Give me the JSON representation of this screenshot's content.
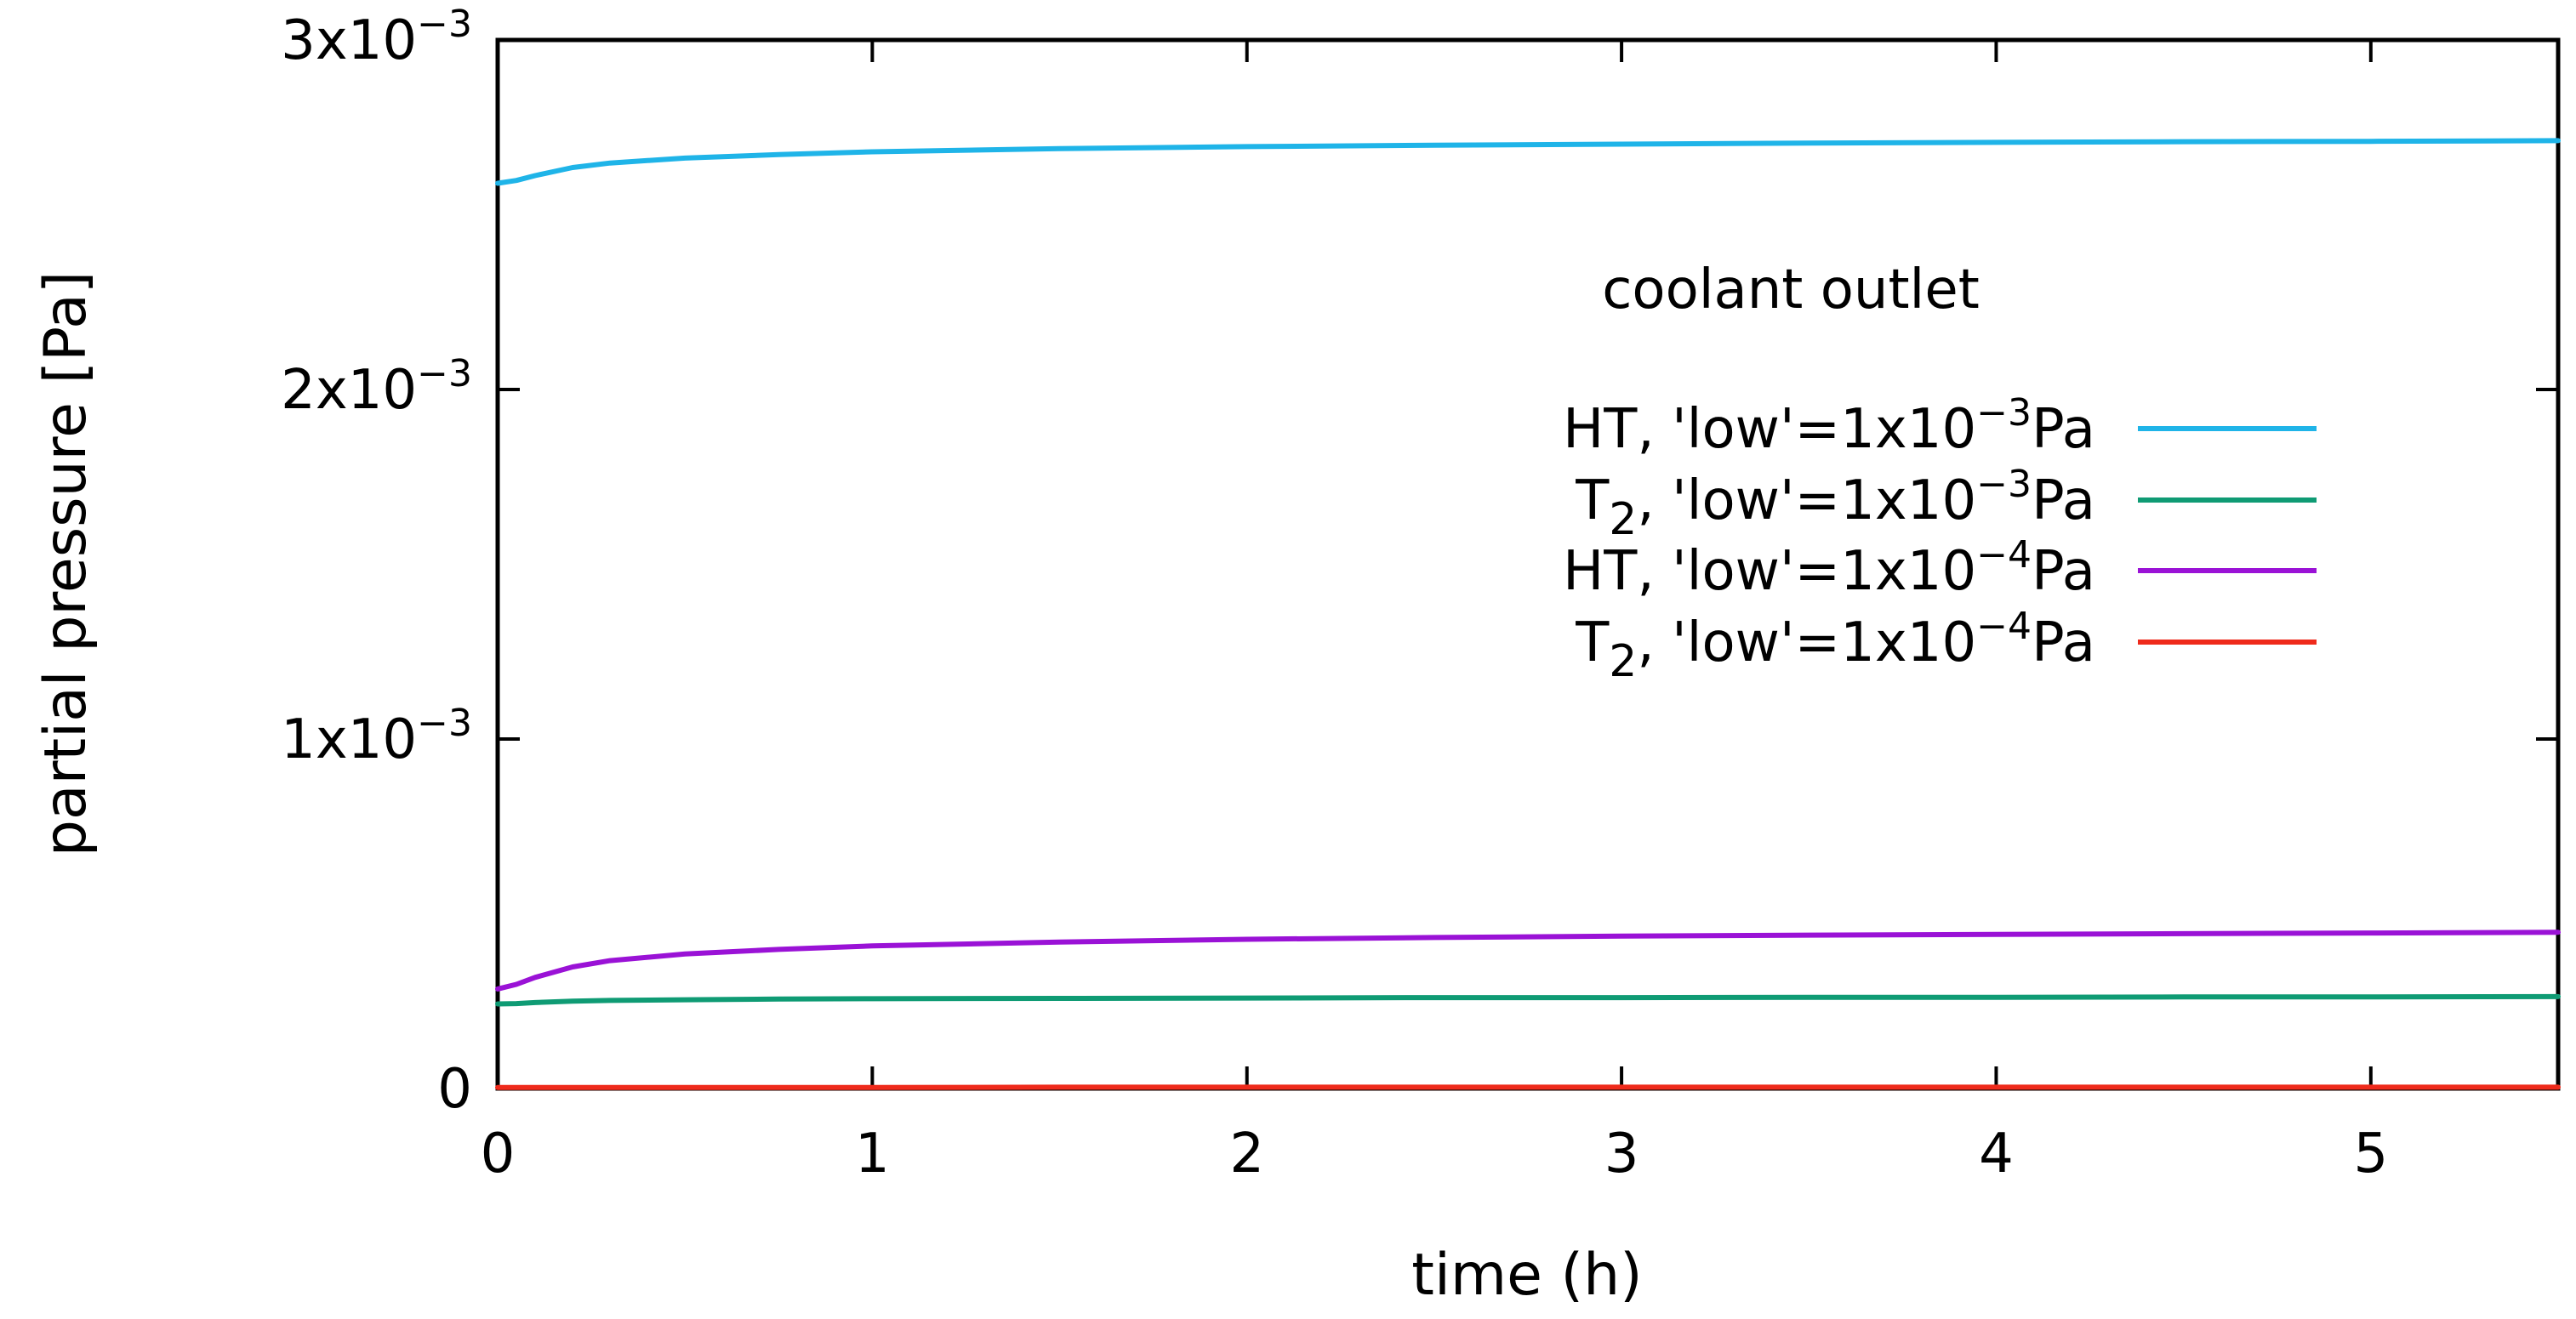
{
  "chart_data": {
    "type": "line",
    "title": "",
    "xlabel": "time (h)",
    "ylabel": "partial pressure [Pa]",
    "xlim": [
      0,
      5.5
    ],
    "ylim": [
      0,
      0.003
    ],
    "grid": false,
    "annotation": "coolant outlet",
    "legend_position": "right",
    "x_ticks": [
      {
        "value": 0,
        "label": "0"
      },
      {
        "value": 1,
        "label": "1"
      },
      {
        "value": 2,
        "label": "2"
      },
      {
        "value": 3,
        "label": "3"
      },
      {
        "value": 4,
        "label": "4"
      },
      {
        "value": 5,
        "label": "5"
      }
    ],
    "y_ticks": [
      {
        "value": 0,
        "mantissa": "0",
        "exponent": ""
      },
      {
        "value": 0.001,
        "mantissa": "1x10",
        "exponent": "−3"
      },
      {
        "value": 0.002,
        "mantissa": "2x10",
        "exponent": "−3"
      },
      {
        "value": 0.003,
        "mantissa": "3x10",
        "exponent": "−3"
      }
    ],
    "x": [
      0,
      0.05,
      0.1,
      0.2,
      0.3,
      0.5,
      0.75,
      1,
      1.5,
      2,
      2.5,
      3,
      3.5,
      4,
      4.5,
      5,
      5.5
    ],
    "series": [
      {
        "name": "HT, 'low'=1x10⁻³Pa",
        "legend": {
          "main": "HT, 'low'=1x10",
          "sub": "",
          "rest": "",
          "sup": "−3",
          "tail": "Pa"
        },
        "color": "#1fb4e8",
        "values": [
          0.00259,
          0.002598,
          0.002612,
          0.002635,
          0.002648,
          0.002662,
          0.002672,
          0.00268,
          0.002689,
          0.002695,
          0.002699,
          0.002702,
          0.002705,
          0.002707,
          0.002709,
          0.00271,
          0.002712
        ]
      },
      {
        "name": "T₂, 'low'=1x10⁻³Pa",
        "legend": {
          "main": "T",
          "sub": "2",
          "rest": ", 'low'=1x10",
          "sup": "−3",
          "tail": "Pa"
        },
        "color": "#0f9b74",
        "values": [
          0.000242,
          0.000243,
          0.000246,
          0.00025,
          0.000252,
          0.000254,
          0.000256,
          0.000257,
          0.000258,
          0.000259,
          0.00026,
          0.00026,
          0.000261,
          0.000261,
          0.000262,
          0.000262,
          0.000263
        ]
      },
      {
        "name": "HT, 'low'=1x10⁻⁴Pa",
        "legend": {
          "main": "HT, 'low'=1x10",
          "sub": "",
          "rest": "",
          "sup": "−4",
          "tail": "Pa"
        },
        "color": "#9a12d6",
        "values": [
          0.000285,
          0.000298,
          0.000318,
          0.000348,
          0.000366,
          0.000385,
          0.000398,
          0.000408,
          0.000419,
          0.000427,
          0.000432,
          0.000436,
          0.000439,
          0.000441,
          0.000443,
          0.000445,
          0.000447
        ]
      },
      {
        "name": "T₂, 'low'=1x10⁻⁴Pa",
        "legend": {
          "main": "T",
          "sub": "2",
          "rest": ", 'low'=1x10",
          "sup": "−4",
          "tail": "Pa"
        },
        "color": "#ef2a1b",
        "values": [
          3e-06,
          3e-06,
          3e-06,
          3e-06,
          3e-06,
          3e-06,
          3e-06,
          3e-06,
          4e-06,
          4e-06,
          4e-06,
          4e-06,
          4e-06,
          4e-06,
          4e-06,
          4e-06,
          4e-06
        ]
      }
    ]
  }
}
